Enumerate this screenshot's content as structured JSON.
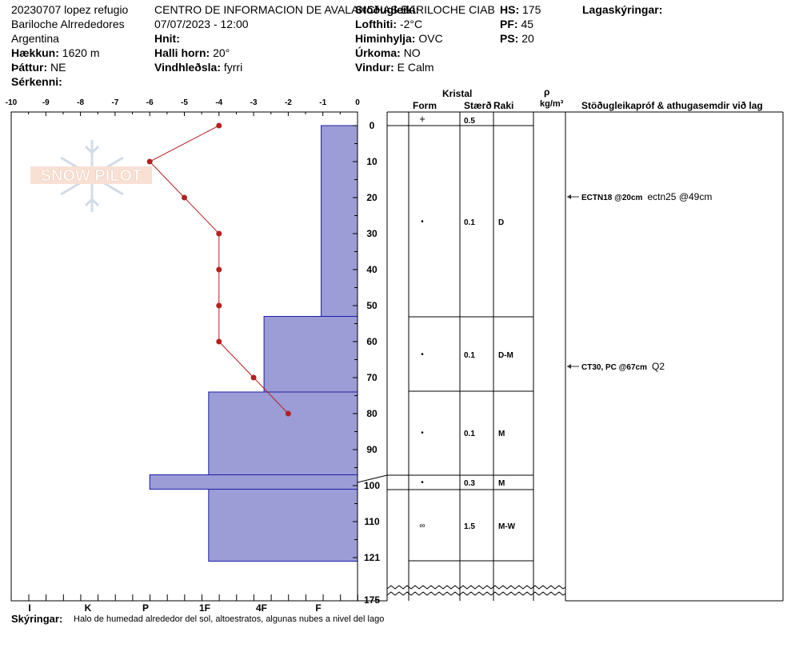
{
  "header": {
    "col1": [
      "20230707 lopez refugio",
      "Bariloche Alrrededores",
      "Argentina"
    ],
    "elevation_label": "Hækkun:",
    "elevation_value": "1620 m",
    "aspect_label": "Þáttur:",
    "aspect_value": "NE",
    "features_label": "Sérkenni:",
    "org": "CENTRO DE INFORMACION DE AVALANCHAS BARILOCHE CIAB",
    "datetime": "07/07/2023 - 12:00",
    "coords_label": "Hnit:",
    "slope_label": "Halli horn:",
    "slope_value": "20°",
    "wind_load_label": "Vindhleðsla:",
    "wind_load_value": "fyrri",
    "stability_label": "Stöðugleiki:",
    "air_temp_label": "Lofthiti:",
    "air_temp_value": "-2°C",
    "sky_label": "Himinhylja:",
    "sky_value": "OVC",
    "precip_label": "Úrkoma:",
    "precip_value": "NO",
    "wind_label": "Vindur:",
    "wind_value": "E Calm",
    "hs_label": "HS:",
    "hs_value": "175",
    "pf_label": "PF:",
    "pf_value": "45",
    "ps_label": "PS:",
    "ps_value": "20",
    "layers_label": "Lagaskýringar:"
  },
  "table_headers": {
    "crystal": "Kristal",
    "form": "Form",
    "size": "Stærð",
    "moisture": "Raki",
    "rho": "ρ",
    "density_unit": "kg/m³",
    "stability": "Stöðugleikapróf & athugasemdir við lag"
  },
  "layers": [
    {
      "top": 0,
      "bottom": 4,
      "form": "+",
      "size": "0.5",
      "moisture": ""
    },
    {
      "top": 4,
      "bottom": 57,
      "form": "•",
      "size": "0.1",
      "moisture": "D"
    },
    {
      "top": 57,
      "bottom": 78,
      "form": "•",
      "size": "0.1",
      "moisture": "D-M"
    },
    {
      "top": 78,
      "bottom": 102,
      "form": "•",
      "size": "0.1",
      "moisture": "M"
    },
    {
      "top": 102,
      "bottom": 106,
      "form": "•",
      "size": "0.3",
      "moisture": "M"
    },
    {
      "top": 106,
      "bottom": 126,
      "form": "∞",
      "size": "1.5",
      "moisture": "M-W"
    }
  ],
  "tests": [
    {
      "depth_cm": 20,
      "label": "ECTN18 @20cm",
      "note": "ectn25 @49cm"
    },
    {
      "depth_cm": 67,
      "label": "CT30, PC @67cm",
      "note": "Q2"
    }
  ],
  "chart_data": {
    "type": "line",
    "temperature_axis": {
      "ticks": [
        "-10",
        "-9",
        "-8",
        "-7",
        "-6",
        "-5",
        "-4",
        "-3",
        "-2",
        "-1",
        "0"
      ],
      "range": [
        -10,
        0
      ]
    },
    "depth_axis": {
      "ticks": [
        "0",
        "10",
        "20",
        "30",
        "40",
        "50",
        "60",
        "70",
        "80",
        "90",
        "100",
        "110",
        "121"
      ],
      "bottom_label": "175"
    },
    "hardness_axis": {
      "labels": [
        "I",
        "K",
        "P",
        "1F",
        "4F",
        "F"
      ]
    },
    "temperature_profile": {
      "depth": [
        0,
        10,
        20,
        30,
        40,
        50,
        60,
        70,
        80
      ],
      "temp": [
        -4,
        -6,
        -5,
        -4,
        -4,
        -4,
        -4,
        -3,
        -2
      ]
    },
    "hardness_profile": [
      {
        "top": 0,
        "bottom": 53,
        "hardness": -1.05
      },
      {
        "top": 53,
        "bottom": 74,
        "hardness": -2.7
      },
      {
        "top": 74,
        "bottom": 97,
        "hardness": -4.3
      },
      {
        "top": 97,
        "bottom": 101,
        "hardness": -6.0
      },
      {
        "top": 101,
        "bottom": 121,
        "hardness": -4.3
      }
    ],
    "watermark": "SNOW PILOT"
  },
  "footer": {
    "label": "Skýringar:",
    "text": "Halo de humedad alrededor del sol, altoestratos, algunas nubes a nivel del lago"
  }
}
